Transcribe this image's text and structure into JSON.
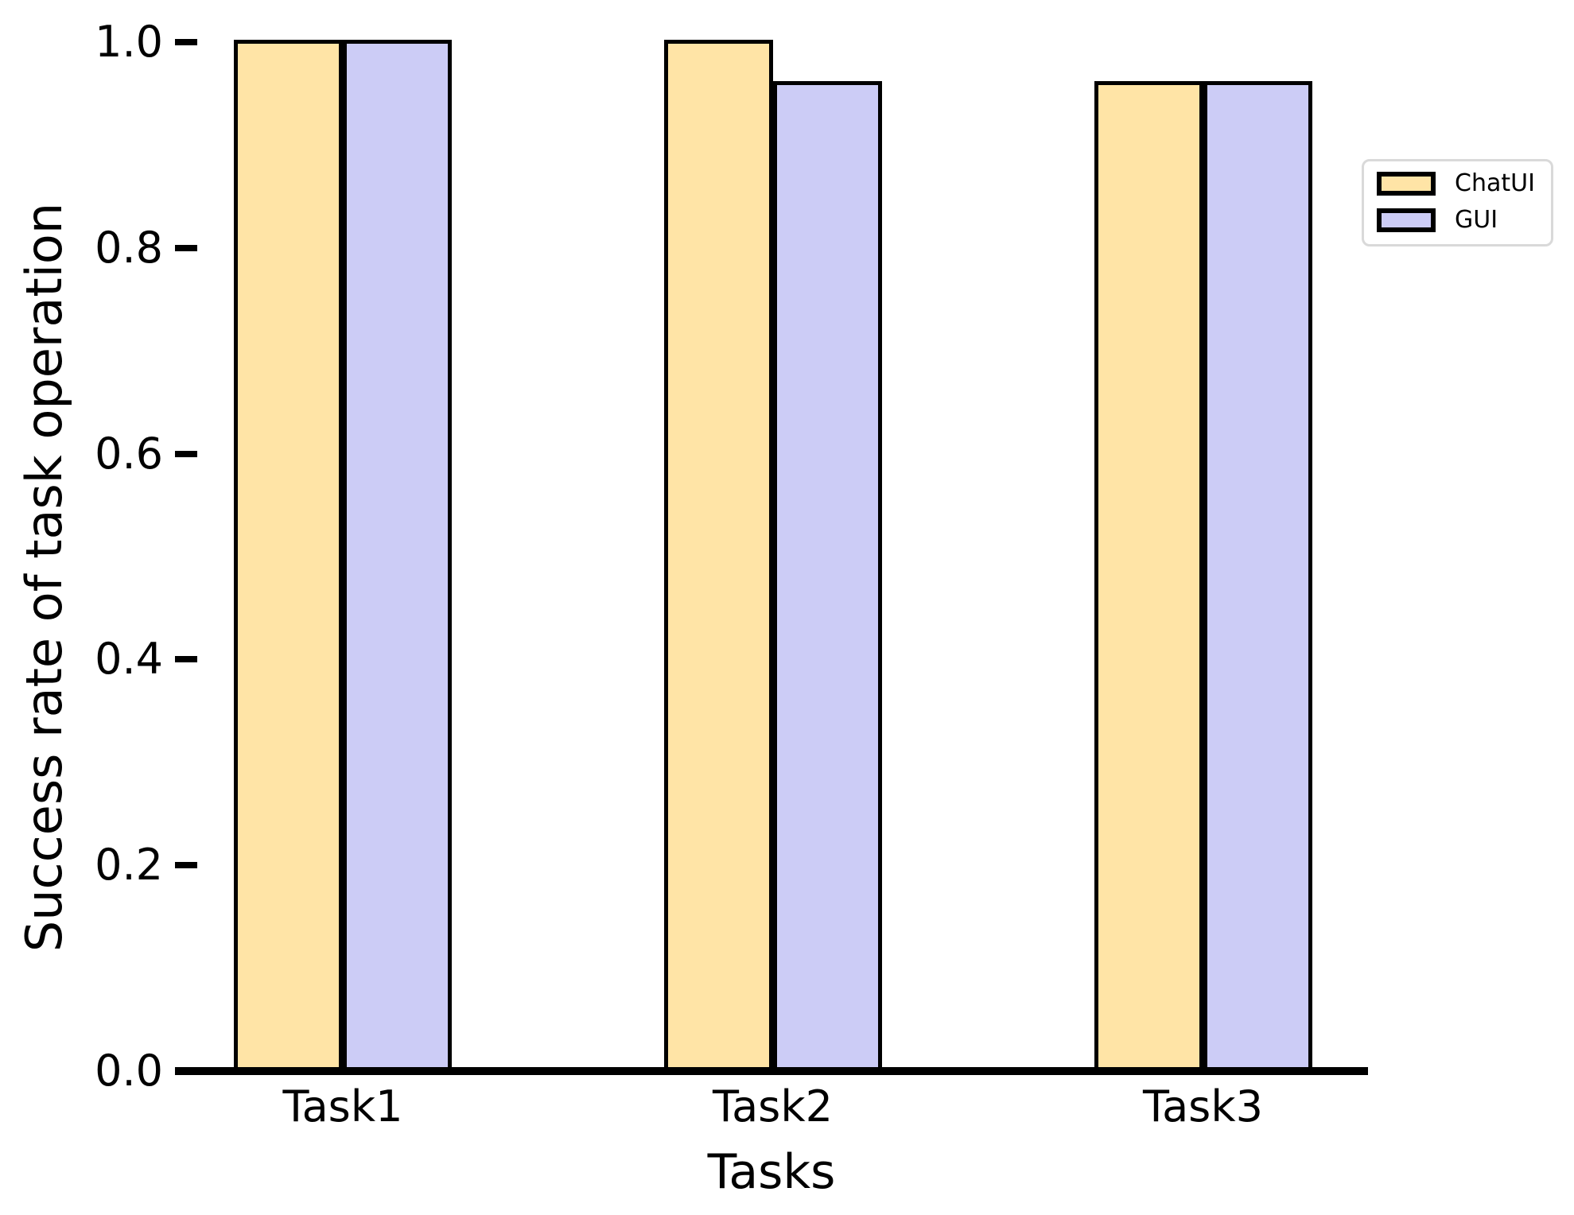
{
  "figure": {
    "background_color": "#ffffff",
    "text_color": "#000000"
  },
  "chart_data": {
    "type": "bar",
    "title": "",
    "xlabel": "Tasks",
    "ylabel": "Success rate of task operation",
    "categories": [
      "Task1",
      "Task2",
      "Task3"
    ],
    "series": [
      {
        "name": "ChatUI",
        "color": "#FFE4A6",
        "values": [
          1.0,
          1.0,
          0.96
        ]
      },
      {
        "name": "GUI",
        "color": "#CCCCF6",
        "values": [
          1.0,
          0.96,
          0.96
        ]
      }
    ],
    "ylim": [
      0.0,
      1.0
    ],
    "yticks": [
      1.0,
      0.8,
      0.6,
      0.4,
      0.2,
      0.0
    ],
    "ytick_labels": [
      "1.0",
      "0.8",
      "0.6",
      "0.4",
      "0.2",
      "0.0"
    ],
    "grid": false,
    "bar_edge_color": "#000000",
    "axis_color": "#000000",
    "legend_position": "upper-right-outside",
    "legend_border_color": "#d9d9d9"
  },
  "legend": {
    "items": [
      {
        "label": "ChatUI",
        "color": "#FFE4A6"
      },
      {
        "label": "GUI",
        "color": "#CCCCF6"
      }
    ]
  }
}
